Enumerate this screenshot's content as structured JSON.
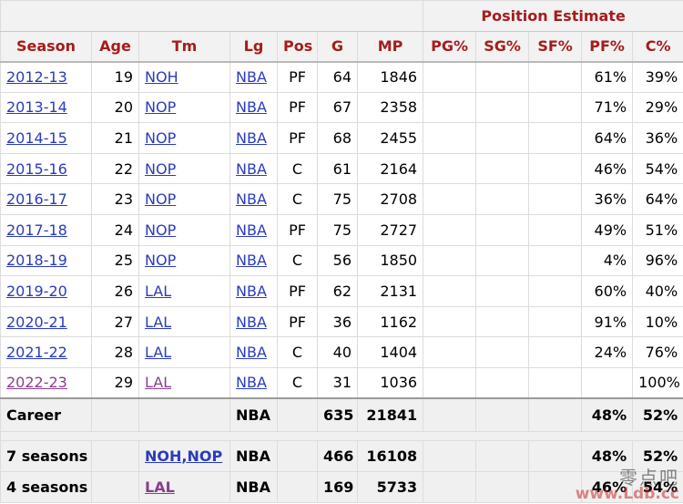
{
  "header": {
    "group_label": "Position Estimate",
    "columns": [
      "Season",
      "Age",
      "Tm",
      "Lg",
      "Pos",
      "G",
      "MP",
      "PG%",
      "SG%",
      "SF%",
      "PF%",
      "C%"
    ]
  },
  "rows": [
    {
      "season": "2012-13",
      "age": "19",
      "tm": "NOH",
      "lg": "NBA",
      "pos": "PF",
      "g": "64",
      "mp": "1846",
      "pg": "",
      "sg": "",
      "sf": "",
      "pf": "61%",
      "c": "39%"
    },
    {
      "season": "2013-14",
      "age": "20",
      "tm": "NOP",
      "lg": "NBA",
      "pos": "PF",
      "g": "67",
      "mp": "2358",
      "pg": "",
      "sg": "",
      "sf": "",
      "pf": "71%",
      "c": "29%"
    },
    {
      "season": "2014-15",
      "age": "21",
      "tm": "NOP",
      "lg": "NBA",
      "pos": "PF",
      "g": "68",
      "mp": "2455",
      "pg": "",
      "sg": "",
      "sf": "",
      "pf": "64%",
      "c": "36%"
    },
    {
      "season": "2015-16",
      "age": "22",
      "tm": "NOP",
      "lg": "NBA",
      "pos": "C",
      "g": "61",
      "mp": "2164",
      "pg": "",
      "sg": "",
      "sf": "",
      "pf": "46%",
      "c": "54%"
    },
    {
      "season": "2016-17",
      "age": "23",
      "tm": "NOP",
      "lg": "NBA",
      "pos": "C",
      "g": "75",
      "mp": "2708",
      "pg": "",
      "sg": "",
      "sf": "",
      "pf": "36%",
      "c": "64%"
    },
    {
      "season": "2017-18",
      "age": "24",
      "tm": "NOP",
      "lg": "NBA",
      "pos": "PF",
      "g": "75",
      "mp": "2727",
      "pg": "",
      "sg": "",
      "sf": "",
      "pf": "49%",
      "c": "51%"
    },
    {
      "season": "2018-19",
      "age": "25",
      "tm": "NOP",
      "lg": "NBA",
      "pos": "C",
      "g": "56",
      "mp": "1850",
      "pg": "",
      "sg": "",
      "sf": "",
      "pf": "4%",
      "c": "96%"
    },
    {
      "season": "2019-20",
      "age": "26",
      "tm": "LAL",
      "lg": "NBA",
      "pos": "PF",
      "g": "62",
      "mp": "2131",
      "pg": "",
      "sg": "",
      "sf": "",
      "pf": "60%",
      "c": "40%"
    },
    {
      "season": "2020-21",
      "age": "27",
      "tm": "LAL",
      "lg": "NBA",
      "pos": "PF",
      "g": "36",
      "mp": "1162",
      "pg": "",
      "sg": "",
      "sf": "",
      "pf": "91%",
      "c": "10%"
    },
    {
      "season": "2021-22",
      "age": "28",
      "tm": "LAL",
      "lg": "NBA",
      "pos": "C",
      "g": "40",
      "mp": "1404",
      "pg": "",
      "sg": "",
      "sf": "",
      "pf": "24%",
      "c": "76%"
    },
    {
      "season": "2022-23",
      "age": "29",
      "tm": "LAL",
      "lg": "NBA",
      "pos": "C",
      "g": "31",
      "mp": "1036",
      "pg": "",
      "sg": "",
      "sf": "",
      "pf": "",
      "c": "100%"
    }
  ],
  "totals": {
    "career": {
      "label": "Career",
      "tm": "",
      "lg": "NBA",
      "g": "635",
      "mp": "21841",
      "pf": "48%",
      "c": "52%"
    },
    "team1": {
      "label": "7 seasons",
      "tm": "NOH,NOP",
      "lg": "NBA",
      "g": "466",
      "mp": "16108",
      "pf": "48%",
      "c": "52%"
    },
    "team2": {
      "label": "4 seasons",
      "tm": "LAL",
      "lg": "NBA",
      "g": "169",
      "mp": "5733",
      "pf": "46%",
      "c": "54%"
    }
  },
  "watermark": {
    "cn": "零点吧",
    "en": "www.Ldb.cc"
  },
  "colors": {
    "header_text": "#a61c1c",
    "link": "#2a3bbf",
    "visited_link": "#8a3e8f"
  }
}
